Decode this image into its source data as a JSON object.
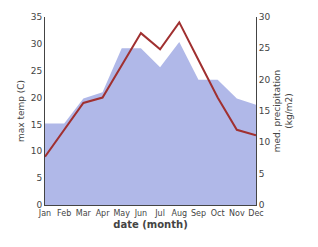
{
  "chart_data": {
    "type": "line",
    "categories": [
      "Jan",
      "Feb",
      "Mar",
      "Apr",
      "May",
      "Jun",
      "Jul",
      "Aug",
      "Sep",
      "Oct",
      "Nov",
      "Dec"
    ],
    "series": [
      {
        "type": "area",
        "color": "#b0b8e8",
        "axis": "y2",
        "values": [
          13,
          13,
          17,
          18,
          25,
          25,
          22,
          26,
          20,
          20,
          17,
          16
        ]
      },
      {
        "type": "line",
        "color": "#a03030",
        "values": [
          9,
          14,
          19,
          20,
          26,
          32,
          29,
          34,
          27,
          20,
          14,
          13
        ]
      }
    ],
    "xlabel": "date (month)",
    "ylabel": "max temp (C)",
    "y2label": "med. precipitation\n(kg/m2)",
    "ylim": [
      0,
      35
    ],
    "yticks": [
      0,
      5,
      10,
      15,
      20,
      25,
      30,
      35
    ],
    "y2lim": [
      0,
      30
    ],
    "y2ticks": [
      0,
      5,
      10,
      15,
      20,
      25,
      30
    ],
    "grid": false,
    "tick_labels": true
  }
}
